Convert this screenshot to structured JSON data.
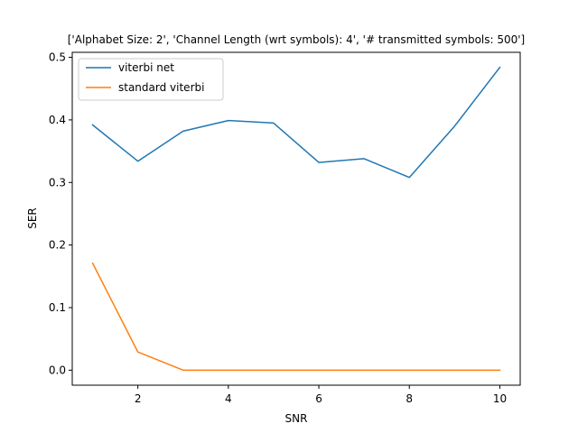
{
  "chart_data": {
    "type": "line",
    "title": "['Alphabet Size: 2', 'Channel Length (wrt symbols): 4', '# transmitted symbols: 500']",
    "xlabel": "SNR",
    "ylabel": "SER",
    "x": [
      1,
      2,
      3,
      4,
      5,
      6,
      7,
      8,
      9,
      10
    ],
    "xlim": [
      0.55,
      10.45
    ],
    "ylim": [
      -0.024,
      0.508
    ],
    "xticks": [
      2,
      4,
      6,
      8,
      10
    ],
    "xtick_labels": [
      "2",
      "4",
      "6",
      "8",
      "10"
    ],
    "yticks": [
      0.0,
      0.1,
      0.2,
      0.3,
      0.4,
      0.5
    ],
    "ytick_labels": [
      "0.0",
      "0.1",
      "0.2",
      "0.3",
      "0.4",
      "0.5"
    ],
    "grid": false,
    "legend_position": "top-left",
    "series": [
      {
        "name": "viterbi net",
        "color": "#1f77b4",
        "values": [
          0.392,
          0.334,
          0.382,
          0.399,
          0.395,
          0.332,
          0.338,
          0.308,
          0.39,
          0.484
        ]
      },
      {
        "name": "standard viterbi",
        "color": "#ff7f0e",
        "values": [
          0.171,
          0.029,
          0.0,
          0.0,
          0.0,
          0.0,
          0.0,
          0.0,
          0.0,
          0.0
        ]
      }
    ]
  }
}
